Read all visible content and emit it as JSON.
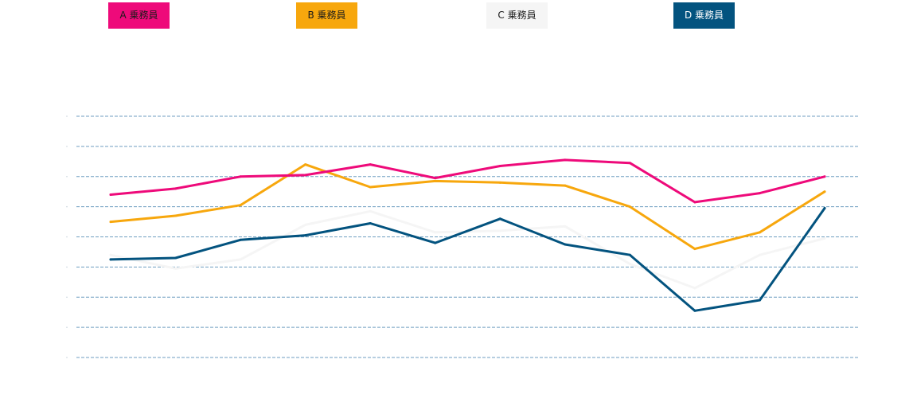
{
  "legend": {
    "a_label": "A 乗務員",
    "b_label": "B 乗務員",
    "c_label": "C 乗務員",
    "d_label": "D 乗務員"
  },
  "colors": {
    "a": "#ee0a7a",
    "b": "#f7a70d",
    "c": "#f5f5f5",
    "d": "#03537f",
    "a_text": "#1a1a1a",
    "b_text": "#1a1a1a",
    "c_text": "#1a1a1a",
    "d_text": "#ffffff",
    "grid": "#6f9ec0"
  },
  "chart_data": {
    "type": "line",
    "title": "",
    "xlabel": "",
    "ylabel": "",
    "x": [
      1,
      2,
      3,
      4,
      5,
      6,
      7,
      8,
      9,
      10,
      11,
      12
    ],
    "ylim": [
      0,
      8
    ],
    "yticks": [
      0,
      1,
      2,
      3,
      4,
      5,
      6,
      7,
      8
    ],
    "grid": true,
    "legend_position": "top",
    "series": [
      {
        "name": "A 乗務員",
        "color": "#ee0a7a",
        "values": [
          5.4,
          5.6,
          6.0,
          6.05,
          6.4,
          5.95,
          6.35,
          6.55,
          6.45,
          5.15,
          5.45,
          6.0
        ]
      },
      {
        "name": "B 乗務員",
        "color": "#f7a70d",
        "values": [
          4.5,
          4.7,
          5.05,
          6.4,
          5.65,
          5.85,
          5.8,
          5.7,
          5.0,
          3.6,
          4.15,
          5.5
        ]
      },
      {
        "name": "C 乗務員",
        "color": "#f5f5f5",
        "values": [
          3.4,
          2.95,
          3.25,
          4.4,
          4.85,
          4.15,
          4.2,
          4.35,
          3.1,
          2.3,
          3.4,
          3.95
        ]
      },
      {
        "name": "D 乗務員",
        "color": "#03537f",
        "values": [
          3.25,
          3.3,
          3.9,
          4.05,
          4.45,
          3.8,
          4.6,
          3.75,
          3.4,
          1.55,
          1.9,
          4.95
        ]
      }
    ]
  }
}
